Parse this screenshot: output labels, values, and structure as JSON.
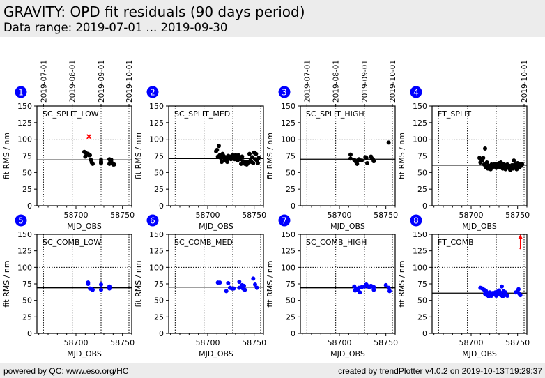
{
  "header": {
    "title": "GRAVITY: OPD fit residuals (90 days period)",
    "subtitle": "Data range: 2019-07-01 ... 2019-09-30"
  },
  "footer": {
    "left": "powered by QC: www.eso.org/HC",
    "right": "created by trendPlotter v4.0.2 on 2019-10-13T19:29:37"
  },
  "colors": {
    "badge": "#0000ff",
    "split_points": "#000000",
    "comb_points": "#0000ff",
    "outlier": "#ff0000"
  },
  "chart_data": [
    {
      "type": "scatter",
      "panel": 1,
      "label": "SC_SPLIT_LOW",
      "xlabel": "MJD_OBS",
      "ylabel": "fit RMS / nm",
      "xlim": [
        58658,
        58760
      ],
      "ylim": [
        0,
        150
      ],
      "xticks": [
        58700,
        58750
      ],
      "yticks": [
        0,
        25,
        50,
        75,
        100,
        125,
        150
      ],
      "top_date_ticks": [
        {
          "label": "2019-07-01",
          "mjd": 58665
        },
        {
          "label": "2019-08-01",
          "mjd": 58696
        },
        {
          "label": "2019-09-01",
          "mjd": 58727
        },
        {
          "label": "2019-10-01",
          "mjd": 58757
        }
      ],
      "grid": {
        "hline": 100,
        "style": "dotted"
      },
      "median": 69,
      "point_color": "black",
      "x": [
        58709,
        58710,
        58711,
        58712,
        58713,
        58714,
        58715,
        58716,
        58717,
        58718,
        58727,
        58727,
        58727,
        58736,
        58736,
        58737,
        58738,
        58739,
        58740,
        58741
      ],
      "y": [
        81,
        74,
        79,
        77,
        78,
        76,
        76,
        69,
        65,
        63,
        69,
        66,
        64,
        70,
        63,
        67,
        69,
        64,
        62,
        62
      ],
      "outliers": [
        {
          "x": 58714,
          "y": 104,
          "marker": "x"
        }
      ]
    },
    {
      "type": "scatter",
      "panel": 2,
      "label": "SC_SPLIT_MED",
      "xlabel": "MJD_OBS",
      "ylabel": "fit RMS / nm",
      "xlim": [
        58658,
        58760
      ],
      "ylim": [
        0,
        150
      ],
      "xticks": [
        58700,
        58750
      ],
      "yticks": [
        0,
        25,
        50,
        75,
        100,
        125,
        150
      ],
      "grid": {
        "hline": 100,
        "style": "dotted"
      },
      "median": 71,
      "point_color": "black",
      "x": [
        58709,
        58710,
        58711,
        58712,
        58713,
        58714,
        58715,
        58716,
        58717,
        58718,
        58719,
        58720,
        58721,
        58722,
        58723,
        58724,
        58725,
        58726,
        58727,
        58728,
        58729,
        58730,
        58731,
        58732,
        58733,
        58734,
        58735,
        58736,
        58737,
        58738,
        58739,
        58740,
        58741,
        58742,
        58743,
        58744,
        58745,
        58746,
        58747,
        58748,
        58749,
        58750,
        58751,
        58752,
        58753,
        58754,
        58755
      ],
      "y": [
        82,
        84,
        74,
        90,
        76,
        72,
        66,
        78,
        75,
        69,
        73,
        71,
        66,
        75,
        72,
        74,
        70,
        73,
        76,
        72,
        70,
        76,
        74,
        68,
        76,
        72,
        70,
        63,
        74,
        67,
        65,
        63,
        66,
        62,
        64,
        66,
        78,
        68,
        66,
        73,
        64,
        80,
        70,
        78,
        68,
        64,
        72
      ]
    },
    {
      "type": "scatter",
      "panel": 3,
      "label": "SC_SPLIT_HIGH",
      "xlabel": "MJD_OBS",
      "ylabel": "fit RMS / nm",
      "xlim": [
        58658,
        58760
      ],
      "ylim": [
        0,
        150
      ],
      "xticks": [
        58700,
        58750
      ],
      "yticks": [
        0,
        25,
        50,
        75,
        100,
        125,
        150
      ],
      "top_date_ticks": [
        {
          "label": "2019-07-01",
          "mjd": 58665
        },
        {
          "label": "2019-08-01",
          "mjd": 58696
        },
        {
          "label": "2019-09-01",
          "mjd": 58727
        },
        {
          "label": "2019-10-01",
          "mjd": 58757
        }
      ],
      "grid": {
        "hline": 100,
        "style": "dotted"
      },
      "median": 70,
      "point_color": "black",
      "x": [
        58712,
        58712,
        58716,
        58718,
        58719,
        58720,
        58721,
        58722,
        58724,
        58728,
        58729,
        58730,
        58734,
        58735,
        58736,
        58737,
        58753
      ],
      "y": [
        77,
        71,
        69,
        66,
        63,
        68,
        70,
        68,
        68,
        73,
        72,
        64,
        74,
        71,
        70,
        67,
        95
      ]
    },
    {
      "type": "scatter",
      "panel": 4,
      "label": "FT_SPLIT",
      "xlabel": "MJD_OBS",
      "ylabel": "fit RMS / nm",
      "xlim": [
        58658,
        58760
      ],
      "ylim": [
        0,
        150
      ],
      "xticks": [
        58700,
        58750
      ],
      "yticks": [
        0,
        25,
        50,
        75,
        100,
        125,
        150
      ],
      "top_date_ticks": [
        {
          "label": "2019-10-01",
          "mjd": 58757
        }
      ],
      "grid": {
        "hline": 100,
        "style": "dotted"
      },
      "median": 61,
      "point_color": "black",
      "x": [
        58709,
        58710,
        58711,
        58712,
        58713,
        58714,
        58715,
        58716,
        58717,
        58718,
        58719,
        58720,
        58721,
        58722,
        58723,
        58724,
        58725,
        58726,
        58727,
        58728,
        58729,
        58730,
        58731,
        58732,
        58733,
        58734,
        58735,
        58736,
        58737,
        58738,
        58739,
        58740,
        58741,
        58742,
        58743,
        58744,
        58745,
        58746,
        58747,
        58748,
        58749,
        58750,
        58751,
        58752,
        58753,
        58754,
        58755
      ],
      "y": [
        72,
        65,
        70,
        68,
        72,
        62,
        86,
        58,
        65,
        56,
        60,
        57,
        55,
        62,
        58,
        60,
        63,
        59,
        57,
        62,
        60,
        64,
        58,
        65,
        60,
        56,
        63,
        61,
        55,
        59,
        62,
        57,
        60,
        54,
        58,
        61,
        56,
        68,
        62,
        59,
        55,
        64,
        61,
        58,
        63,
        60,
        62
      ]
    },
    {
      "type": "scatter",
      "panel": 5,
      "label": "SC_COMB_LOW",
      "xlabel": "MJD_OBS",
      "ylabel": "fit RMS / nm",
      "xlim": [
        58658,
        58760
      ],
      "ylim": [
        0,
        150
      ],
      "xticks": [
        58700,
        58750
      ],
      "yticks": [
        0,
        25,
        50,
        75,
        100,
        125,
        150
      ],
      "grid": {
        "hline": 100,
        "style": "dotted"
      },
      "median": 69,
      "point_color": "blue",
      "x": [
        58713,
        58713,
        58715,
        58717,
        58718,
        58727,
        58727,
        58736,
        58736
      ],
      "y": [
        77,
        75,
        68,
        67,
        66,
        74,
        66,
        71,
        68
      ]
    },
    {
      "type": "scatter",
      "panel": 6,
      "label": "SC_COMB_MED",
      "xlabel": "MJD_OBS",
      "ylabel": "fit RMS / nm",
      "xlim": [
        58658,
        58760
      ],
      "ylim": [
        0,
        150
      ],
      "xticks": [
        58700,
        58750
      ],
      "yticks": [
        0,
        25,
        50,
        75,
        100,
        125,
        150
      ],
      "grid": {
        "hline": 100,
        "style": "dotted"
      },
      "median": 70,
      "point_color": "blue",
      "x": [
        58711,
        58713,
        58720,
        58722,
        58724,
        58726,
        58728,
        58734,
        58734,
        58737,
        58738,
        58739,
        58740,
        58749,
        58751,
        58753
      ],
      "y": [
        77,
        77,
        64,
        76,
        69,
        68,
        68,
        78,
        69,
        73,
        68,
        72,
        66,
        83,
        74,
        69
      ]
    },
    {
      "type": "scatter",
      "panel": 7,
      "label": "SC_COMB_HIGH",
      "xlabel": "MJD_OBS",
      "ylabel": "fit RMS / nm",
      "xlim": [
        58658,
        58760
      ],
      "ylim": [
        0,
        150
      ],
      "xticks": [
        58700,
        58750
      ],
      "yticks": [
        0,
        25,
        50,
        75,
        100,
        125,
        150
      ],
      "grid": {
        "hline": 100,
        "style": "dotted"
      },
      "median": 69,
      "point_color": "blue",
      "x": [
        58716,
        58717,
        58718,
        58719,
        58720,
        58721,
        58722,
        58724,
        58727,
        58729,
        58730,
        58732,
        58734,
        58735,
        58737,
        58737,
        58750,
        58753,
        58754
      ],
      "y": [
        71,
        65,
        68,
        67,
        66,
        69,
        62,
        70,
        71,
        74,
        72,
        70,
        72,
        71,
        70,
        66,
        73,
        69,
        64
      ]
    },
    {
      "type": "scatter",
      "panel": 8,
      "label": "FT_COMB",
      "xlabel": "MJD_OBS",
      "ylabel": "fit RMS / nm",
      "xlim": [
        58658,
        58760
      ],
      "ylim": [
        0,
        150
      ],
      "xticks": [
        58700,
        58750
      ],
      "yticks": [
        0,
        25,
        50,
        75,
        100,
        125,
        150
      ],
      "grid": {
        "hline": 100,
        "style": "dotted"
      },
      "median": 61,
      "point_color": "blue",
      "x": [
        58710,
        58712,
        58714,
        58715,
        58716,
        58717,
        58718,
        58719,
        58720,
        58721,
        58722,
        58723,
        58724,
        58725,
        58726,
        58727,
        58728,
        58729,
        58730,
        58731,
        58732,
        58733,
        58734,
        58735,
        58736,
        58737,
        58738,
        58739,
        58748,
        58750,
        58751,
        58752,
        58753
      ],
      "y": [
        69,
        68,
        66,
        60,
        64,
        58,
        60,
        56,
        62,
        58,
        57,
        61,
        59,
        60,
        62,
        57,
        63,
        60,
        65,
        62,
        58,
        71,
        56,
        64,
        60,
        62,
        58,
        57,
        62,
        64,
        67,
        60,
        58
      ],
      "outliers": [
        {
          "x": 58753,
          "y": 150,
          "marker": "up-arrow",
          "note": "off-scale high"
        }
      ]
    }
  ]
}
